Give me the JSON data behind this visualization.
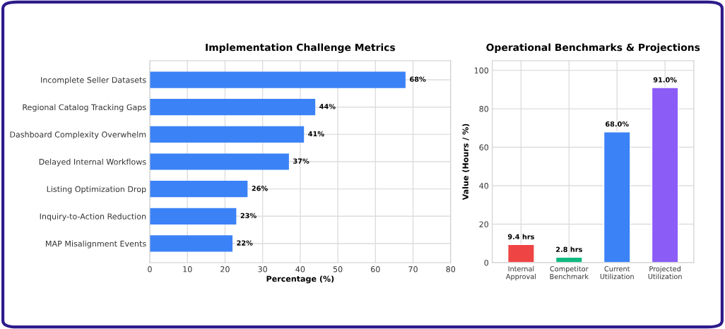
{
  "chart_data": [
    {
      "type": "bar",
      "orientation": "horizontal",
      "title": "Implementation Challenge Metrics",
      "xlabel": "Percentage (%)",
      "categories": [
        "Incomplete Seller Datasets",
        "Regional Catalog Tracking Gaps",
        "Dashboard Complexity Overwhelm",
        "Delayed Internal Workflows",
        "Listing Optimization Drop",
        "Inquiry-to-Action Reduction",
        "MAP Misalignment Events"
      ],
      "values": [
        68,
        44,
        41,
        37,
        26,
        23,
        22
      ],
      "value_labels": [
        "68%",
        "44%",
        "41%",
        "37%",
        "26%",
        "23%",
        "22%"
      ],
      "color": "#3b82f6",
      "xlim": [
        0,
        80
      ],
      "xticks": [
        0,
        10,
        20,
        30,
        40,
        50,
        60,
        70,
        80
      ],
      "grid": true,
      "legend": false
    },
    {
      "type": "bar",
      "title": "Operational Benchmarks & Projections",
      "ylabel": "Value (Hours / %)",
      "categories": [
        "Internal\nApproval",
        "Competitor\nBenchmark",
        "Current\nUtilization",
        "Projected\nUtilization"
      ],
      "values": [
        9.4,
        2.8,
        68.0,
        91.0
      ],
      "value_labels": [
        "9.4 hrs",
        "2.8 hrs",
        "68.0%",
        "91.0%"
      ],
      "colors": [
        "#ef4444",
        "#10b981",
        "#3b82f6",
        "#8b5cf6"
      ],
      "ylim": [
        0,
        105
      ],
      "yticks": [
        0,
        20,
        40,
        60,
        80,
        100
      ],
      "grid": true,
      "legend": false
    }
  ]
}
